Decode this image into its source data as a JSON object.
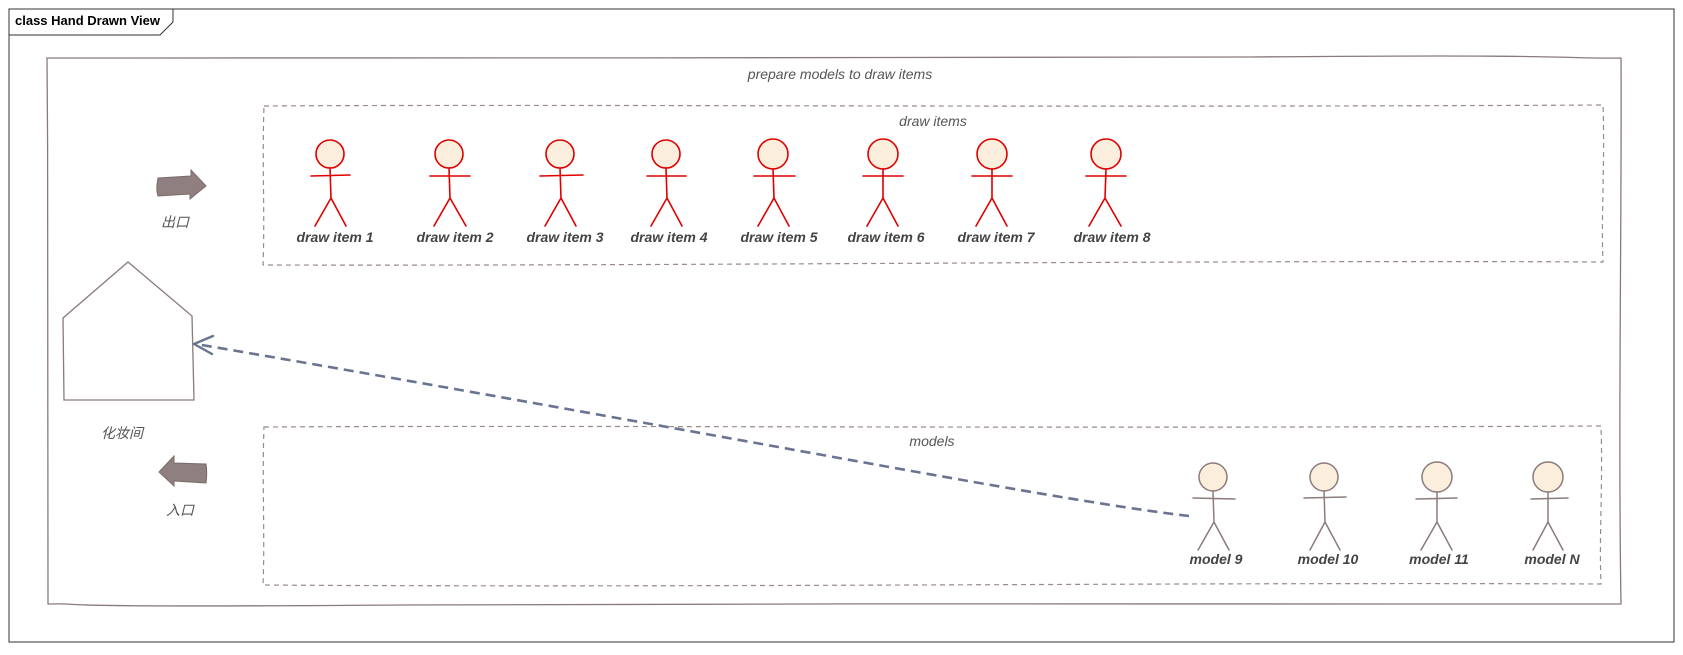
{
  "frame": {
    "title": "class Hand Drawn View"
  },
  "outer_boundary": {
    "label": "prepare models to draw items"
  },
  "draw_items_boundary": {
    "label": "draw items",
    "actors": [
      "draw item 1",
      "draw item 2",
      "draw item 3",
      "draw item 4",
      "draw item 5",
      "draw item 6",
      "draw item 7",
      "draw item 8"
    ]
  },
  "models_boundary": {
    "label": "models",
    "actors": [
      "model 9",
      "model 10",
      "model 11",
      "model N"
    ]
  },
  "exit_arrow": {
    "label": "出口"
  },
  "makeup_room": {
    "label": "化妆间"
  },
  "entrance_arrow": {
    "label": "入口"
  },
  "colors": {
    "draw_item_stroke": "#e00000",
    "model_stroke": "#8b7b7b",
    "actor_head_fill": "#fbeedd",
    "boundary_stroke": "#9a8a8a",
    "arrow_fill": "#8f7f7f",
    "dependency_line": "#6a7490"
  }
}
